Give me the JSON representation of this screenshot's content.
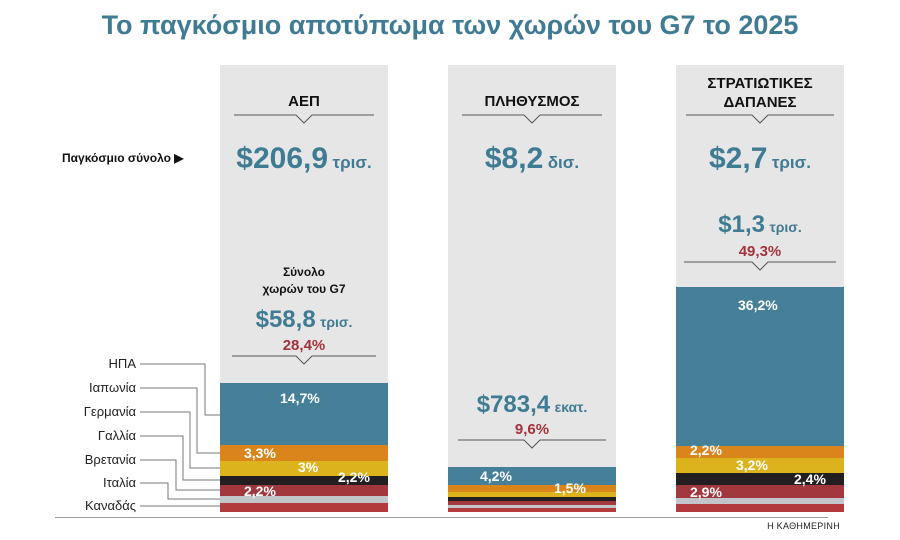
{
  "title": "Το παγκόσμιο αποτύπωμα των χωρών του G7 το 2025",
  "world_total_label": "Παγκόσμιο σύνολο",
  "g7_total_label_line1": "Σύνολο",
  "g7_total_label_line2": "χωρών του G7",
  "credit": "Η ΚΑΘΗΜΕΡΙΝΗ",
  "countries": [
    "ΗΠΑ",
    "Ιαπωνία",
    "Γερμανία",
    "Γαλλία",
    "Βρετανία",
    "Ιταλία",
    "Καναδάς"
  ],
  "colors": {
    "accent": "#3f7b93",
    "pct_red": "#a0333b",
    "panel": "#e6e6e7",
    "usa": "#467f98",
    "japan": "#d9851c",
    "germany": "#dcb31d",
    "france": "#231f20",
    "uk": "#a3373e",
    "italy": "#c2c5c9",
    "canada": "#b2393c"
  },
  "columns": [
    {
      "title_lines": [
        "ΑΕΠ"
      ],
      "world_value": "$206,9",
      "world_unit": "τρισ.",
      "g7_value": "$58,8",
      "g7_unit": "τρισ.",
      "g7_share": "28,4%",
      "segment_labels": [
        "14,7%",
        "3,3%",
        "3%",
        "2,2%",
        "2,2%"
      ]
    },
    {
      "title_lines": [
        "ΠΛΗΘΥΣΜΟΣ"
      ],
      "world_value": "$8,2",
      "world_unit": "δισ.",
      "g7_value": "$783,4",
      "g7_unit": "εκατ.",
      "g7_share": "9,6%",
      "segment_labels": [
        "4,2%",
        "1,5%"
      ]
    },
    {
      "title_lines": [
        "ΣΤΡΑΤΙΩΤΙΚΕΣ",
        "ΔΑΠΑΝΕΣ"
      ],
      "world_value": "$2,7",
      "world_unit": "τρισ.",
      "g7_value": "$1,3",
      "g7_unit": "τρισ.",
      "g7_share": "49,3%",
      "segment_labels": [
        "36,2%",
        "2,2%",
        "3,2%",
        "2,4%",
        "2,9%"
      ]
    }
  ],
  "chart_data": {
    "type": "bar",
    "title": "Το παγκόσμιο αποτύπωμα των χωρών του G7 το 2025",
    "categories": [
      "ΑΕΠ",
      "ΠΛΗΘΥΣΜΟΣ",
      "ΣΤΡΑΤΙΩΤΙΚΕΣ ΔΑΠΑΝΕΣ"
    ],
    "stacked": true,
    "unit": "% of world total",
    "world_totals": [
      "$206,9 τρισ.",
      "$8,2 δισ.",
      "$2,7 τρισ."
    ],
    "g7_totals": [
      "$58,8 τρισ.",
      "$783,4 εκατ.",
      "$1,3 τρισ."
    ],
    "g7_share": [
      28.4,
      9.6,
      49.3
    ],
    "series": [
      {
        "name": "ΗΠΑ",
        "values": [
          14.7,
          4.2,
          36.2
        ]
      },
      {
        "name": "Ιαπωνία",
        "values": [
          3.3,
          1.5,
          2.2
        ]
      },
      {
        "name": "Γερμανία",
        "values": [
          3.0,
          1.0,
          3.2
        ]
      },
      {
        "name": "Γαλλία",
        "values": [
          2.2,
          0.8,
          2.4
        ]
      },
      {
        "name": "Βρετανία",
        "values": [
          2.2,
          0.8,
          2.9
        ]
      },
      {
        "name": "Ιταλία",
        "values": [
          1.5,
          0.7,
          1.2
        ]
      },
      {
        "name": "Καναδάς",
        "values": [
          1.5,
          0.6,
          1.2
        ]
      }
    ]
  }
}
